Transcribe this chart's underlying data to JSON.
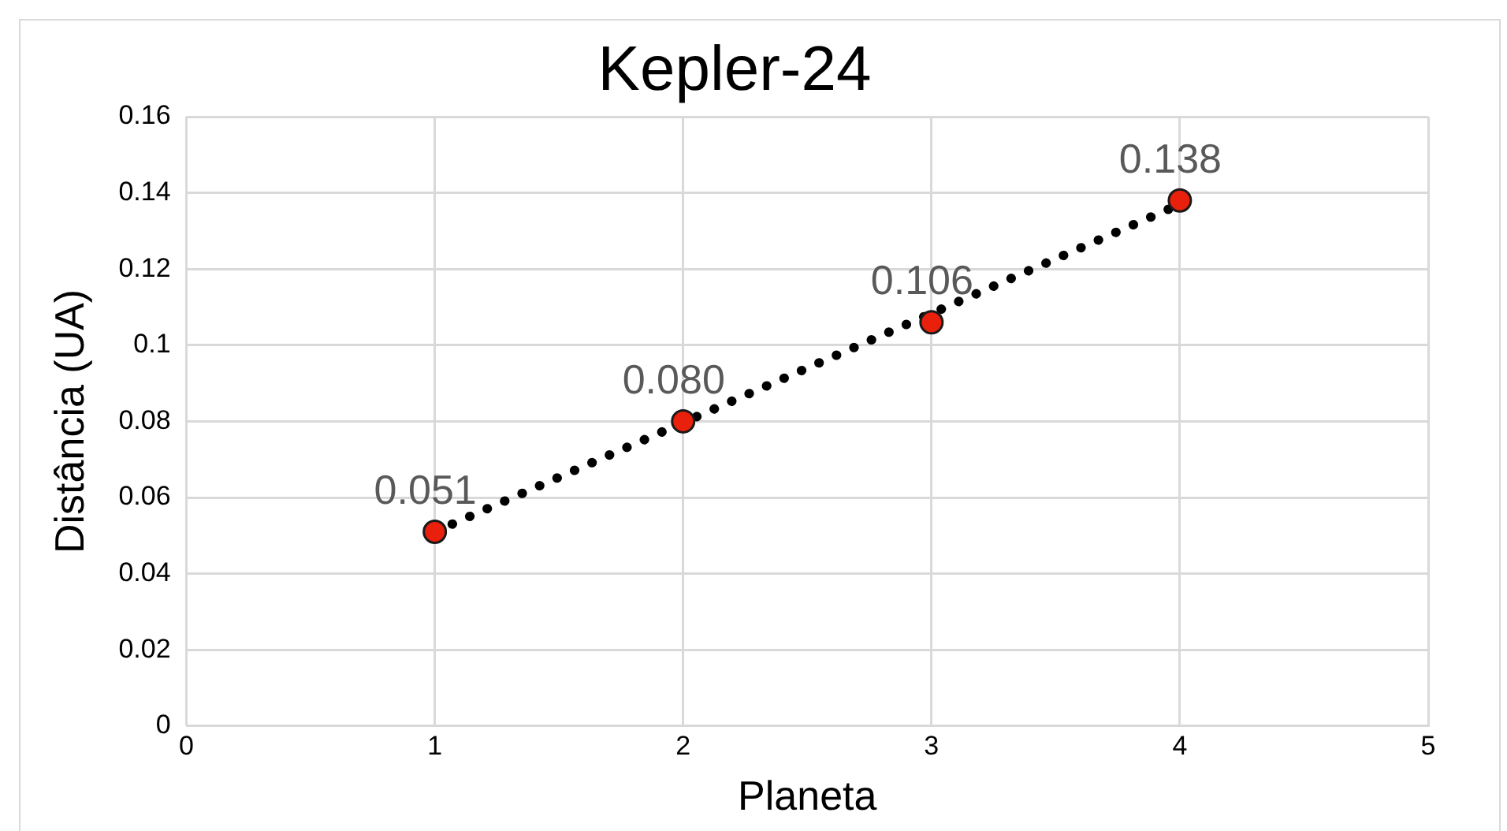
{
  "chart_data": {
    "type": "scatter",
    "title": "Kepler-24",
    "xlabel": "Planeta",
    "ylabel": "Distância (UA)",
    "xlim": [
      0,
      5
    ],
    "xticks": [
      0,
      1,
      2,
      3,
      4,
      5
    ],
    "ylim": [
      0,
      0.16
    ],
    "yticks": [
      0,
      0.02,
      0.04,
      0.06,
      0.08,
      0.1,
      0.12,
      0.14,
      0.16
    ],
    "grid": true,
    "legend": false,
    "series": [
      {
        "type": "scatter",
        "x": [
          1,
          2,
          3,
          4
        ],
        "values": [
          0.051,
          0.08,
          0.106,
          0.138
        ],
        "color": "#e8200c",
        "marker": "circle",
        "value_labels": [
          "0.051",
          "0.080",
          "0.106",
          "0.138"
        ]
      },
      {
        "type": "line",
        "x": [
          1,
          4
        ],
        "values": [
          0.051,
          0.137
        ],
        "color": "#000000",
        "marker": "none",
        "line_style": "dotted"
      }
    ]
  }
}
